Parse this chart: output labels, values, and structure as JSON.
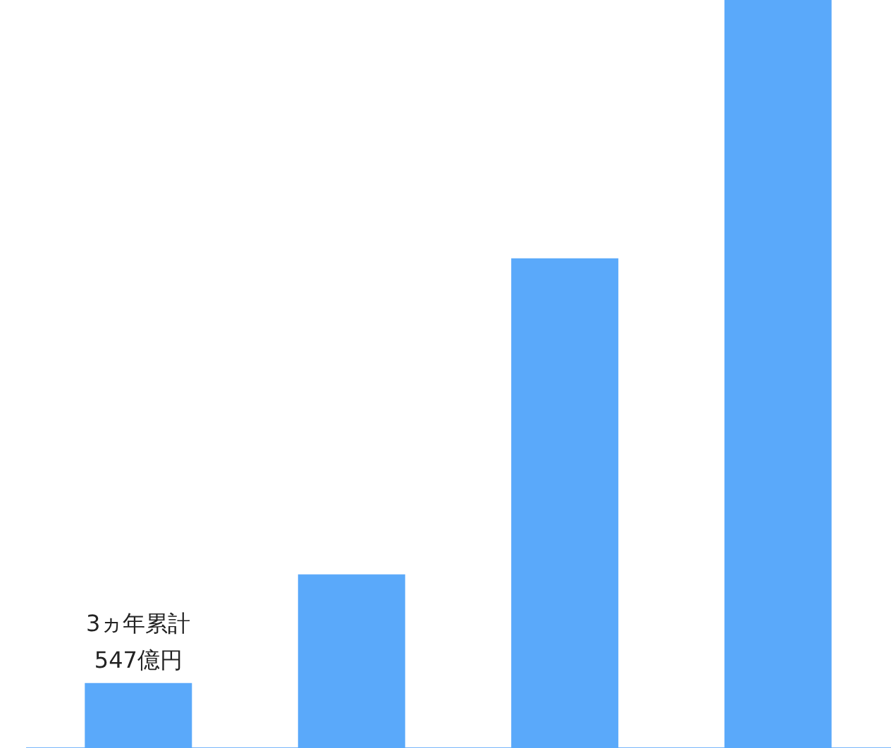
{
  "chart_data": {
    "type": "bar",
    "categories": [
      null,
      null,
      null,
      null
    ],
    "values": [
      547,
      1463,
      4126,
      6302
    ],
    "color": "#5aa9fa",
    "value_labels": [
      "3ヵ年累計\n547億円",
      null,
      null,
      null
    ],
    "tick_labels": false,
    "grid": false
  }
}
